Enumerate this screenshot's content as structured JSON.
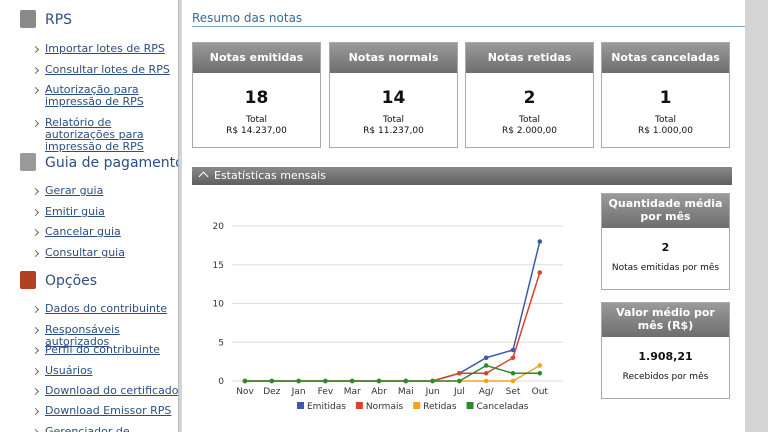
{
  "sidebar": {
    "sections": [
      {
        "title": "RPS",
        "links": [
          "Importar lotes de RPS",
          "Consultar lotes de RPS",
          "Autorização para impressão de RPS",
          "Relatório de autorizações para impressão de RPS"
        ]
      },
      {
        "title": "Guia de pagamento",
        "links": [
          "Gerar guia",
          "Emitir guia",
          "Cancelar guia",
          "Consultar guia"
        ]
      },
      {
        "title": "Opções",
        "links": [
          "Dados do contribuinte",
          "Responsáveis autorizados",
          "Perfil do contribuinte",
          "Usuários",
          "Download do certificado",
          "Download Emissor RPS",
          "Gerenciador de relatórios"
        ]
      }
    ]
  },
  "summary": {
    "title": "Resumo das notas",
    "cards": [
      {
        "title": "Notas emitidas",
        "value": 18,
        "total_label": "Total",
        "total": "R$ 14.237,00"
      },
      {
        "title": "Notas normais",
        "value": 14,
        "total_label": "Total",
        "total": "R$ 11.237,00"
      },
      {
        "title": "Notas retidas",
        "value": 2,
        "total_label": "Total",
        "total": "R$ 2.000,00"
      },
      {
        "title": "Notas canceladas",
        "value": 1,
        "total_label": "Total",
        "total": "R$ 1.000,00"
      }
    ]
  },
  "stats": {
    "title": "Estatísticas mensais",
    "chart": {
      "type": "line",
      "categories": [
        "Nov",
        "Dez",
        "Jan",
        "Fev",
        "Mar",
        "Abr",
        "Mai",
        "Jun",
        "Jul",
        "Ag/",
        "Set",
        "Out"
      ],
      "ylim": [
        0,
        20
      ],
      "yticks": [
        0,
        5,
        10,
        15,
        20
      ],
      "grid": true,
      "series": [
        {
          "name": "Emitidas",
          "color": "#3b5ba9",
          "values": [
            0,
            0,
            0,
            0,
            0,
            0,
            0,
            0,
            1,
            3,
            4,
            18
          ]
        },
        {
          "name": "Normais",
          "color": "#d8432c",
          "values": [
            0,
            0,
            0,
            0,
            0,
            0,
            0,
            0,
            1,
            1,
            3,
            14
          ]
        },
        {
          "name": "Retidas",
          "color": "#f5a21f",
          "values": [
            0,
            0,
            0,
            0,
            0,
            0,
            0,
            0,
            0,
            0,
            0,
            2
          ]
        },
        {
          "name": "Canceladas",
          "color": "#2f8a2f",
          "values": [
            0,
            0,
            0,
            0,
            0,
            0,
            0,
            0,
            0,
            2,
            1,
            1
          ]
        }
      ]
    },
    "side_cards": [
      {
        "title": "Quantidade média por mês",
        "value": "2",
        "caption": "Notas emitidas por mês"
      },
      {
        "title": "Valor médio por mês (R$)",
        "value": "1.908,21",
        "caption": "Recebidos por mês"
      }
    ]
  }
}
